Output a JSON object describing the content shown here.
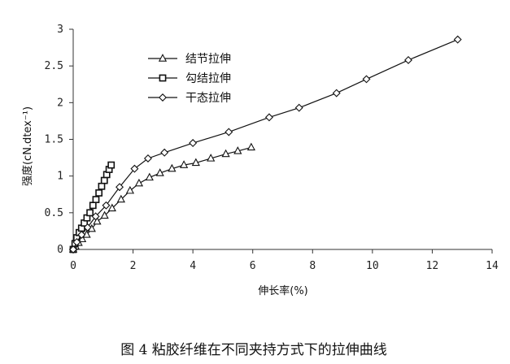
{
  "chart_data": {
    "type": "line",
    "title": "",
    "caption": "图 4 粘胶纤维在不同夹持方式下的拉伸曲线",
    "xlabel": "伸长率(%)",
    "ylabel": "强度(cN.dtex⁻¹)",
    "xlim": [
      0,
      14
    ],
    "ylim": [
      0,
      3
    ],
    "xticks": [
      "0",
      "2",
      "4",
      "6",
      "8",
      "10",
      "12",
      "14"
    ],
    "yticks": [
      "0",
      "0.5",
      "1",
      "1.5",
      "2",
      "2.5",
      "3"
    ],
    "grid": false,
    "legend_position": "top-left",
    "series": [
      {
        "name": "结节拉伸",
        "marker": "triangle",
        "color": "#111111",
        "x": [
          0,
          0.08,
          0.18,
          0.3,
          0.45,
          0.62,
          0.8,
          1.05,
          1.3,
          1.6,
          1.9,
          2.2,
          2.55,
          2.9,
          3.3,
          3.7,
          4.1,
          4.6,
          5.1,
          5.5,
          5.95
        ],
        "y": [
          0,
          0.04,
          0.09,
          0.14,
          0.2,
          0.28,
          0.38,
          0.46,
          0.56,
          0.68,
          0.8,
          0.9,
          0.98,
          1.04,
          1.1,
          1.15,
          1.18,
          1.24,
          1.3,
          1.34,
          1.39
        ]
      },
      {
        "name": "勾结拉伸",
        "marker": "square",
        "color": "#111111",
        "x": [
          0,
          0.06,
          0.12,
          0.2,
          0.28,
          0.37,
          0.46,
          0.56,
          0.66,
          0.76,
          0.86,
          0.95,
          1.04,
          1.12,
          1.2,
          1.27
        ],
        "y": [
          0,
          0.08,
          0.16,
          0.23,
          0.29,
          0.36,
          0.43,
          0.5,
          0.6,
          0.68,
          0.77,
          0.86,
          0.94,
          1.02,
          1.09,
          1.15
        ]
      },
      {
        "name": "干态拉伸",
        "marker": "diamond",
        "color": "#111111",
        "x": [
          0,
          0.12,
          0.28,
          0.48,
          0.75,
          1.1,
          1.55,
          2.05,
          2.5,
          3.05,
          4.0,
          5.2,
          6.55,
          7.55,
          8.8,
          9.8,
          11.2,
          12.85
        ],
        "y": [
          0,
          0.1,
          0.2,
          0.3,
          0.45,
          0.6,
          0.85,
          1.1,
          1.24,
          1.32,
          1.45,
          1.6,
          1.8,
          1.93,
          2.13,
          2.32,
          2.58,
          2.86
        ]
      }
    ]
  }
}
